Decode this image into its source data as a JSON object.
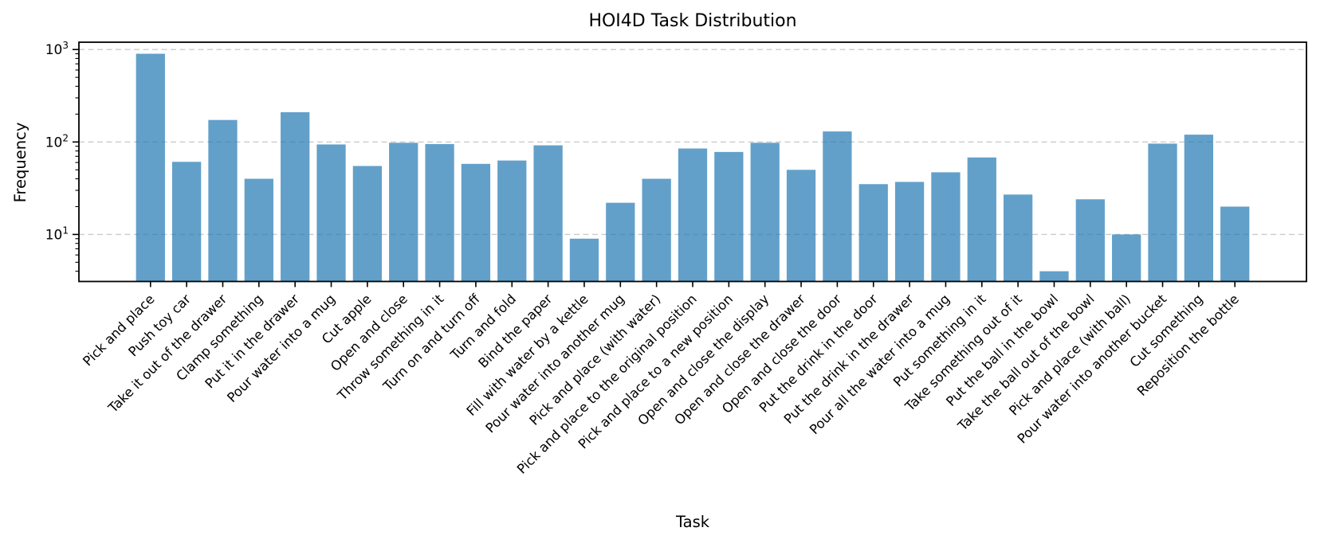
{
  "chart_data": {
    "type": "bar",
    "title": "HOI4D Task Distribution",
    "xlabel": "Task",
    "ylabel": "Frequency",
    "yscale": "log",
    "ylim": [
      3.1,
      1200
    ],
    "yticks": [
      10,
      100,
      1000
    ],
    "ytick_labels": [
      "10¹",
      "10²",
      "10³"
    ],
    "grid": "horizontal-dashed",
    "legend": "none",
    "bar_color": "#1f77b4",
    "bar_opacity": 0.7,
    "grid_color": "#cccccc",
    "categories": [
      "Pick and place",
      "Push toy car",
      "Take it out of the drawer",
      "Clamp something",
      "Put it in the drawer",
      "Pour water into a mug",
      "Cut apple",
      "Open and close",
      "Throw something in it",
      "Turn on and turn off",
      "Turn and fold",
      "Bind the paper",
      "Fill with water by a kettle",
      "Pour water into another mug",
      "Pick and place (with water)",
      "Pick and place to the original position",
      "Pick and place to a new position",
      "Open and close the display",
      "Open and close the drawer",
      "Open and close the door",
      "Put the drink in the door",
      "Put the drink in the drawer",
      "Pour all the water into a mug",
      "Put something in it",
      "Take something out of it",
      "Put the ball in the bowl",
      "Take the ball out of the bowl",
      "Pick and place (with ball)",
      "Pour water into another bucket",
      "Cut something",
      "Reposition the bottle"
    ],
    "values": [
      900,
      61,
      173,
      40,
      210,
      94,
      55,
      98,
      95,
      58,
      63,
      92,
      9,
      22,
      40,
      85,
      78,
      98,
      50,
      130,
      35,
      37,
      47,
      68,
      27,
      4,
      24,
      10,
      96,
      120,
      20
    ]
  }
}
